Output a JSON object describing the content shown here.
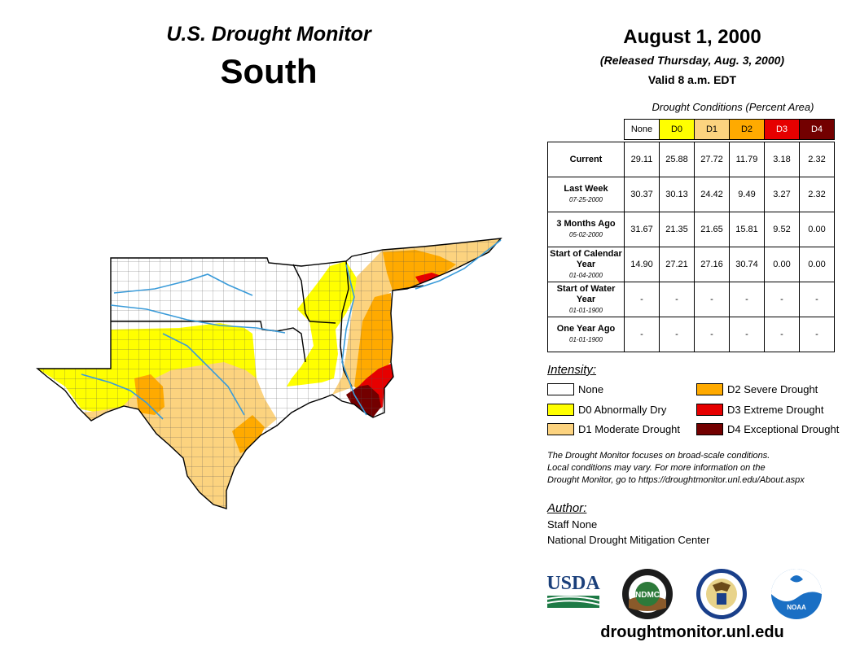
{
  "header": {
    "product": "U.S. Drought Monitor",
    "region": "South",
    "date": "August 1, 2000",
    "released": "(Released Thursday, Aug. 3, 2000)",
    "valid": "Valid 8 a.m. EDT"
  },
  "stats": {
    "caption": "Drought Conditions (Percent Area)",
    "columns": [
      "None",
      "D0",
      "D1",
      "D2",
      "D3",
      "D4"
    ],
    "column_colors": [
      "#ffffff",
      "#ffff00",
      "#fcd37f",
      "#ffaa00",
      "#e60000",
      "#730000"
    ],
    "rows": [
      {
        "label": "Current",
        "date": "",
        "values": [
          "29.11",
          "25.88",
          "27.72",
          "11.79",
          "3.18",
          "2.32"
        ]
      },
      {
        "label": "Last Week",
        "date": "07-25-2000",
        "values": [
          "30.37",
          "30.13",
          "24.42",
          "9.49",
          "3.27",
          "2.32"
        ]
      },
      {
        "label": "3 Months Ago",
        "date": "05-02-2000",
        "values": [
          "31.67",
          "21.35",
          "21.65",
          "15.81",
          "9.52",
          "0.00"
        ]
      },
      {
        "label": "Start of Calendar Year",
        "date": "01-04-2000",
        "values": [
          "14.90",
          "27.21",
          "27.16",
          "30.74",
          "0.00",
          "0.00"
        ]
      },
      {
        "label": "Start of Water Year",
        "date": "01-01-1900",
        "values": [
          "-",
          "-",
          "-",
          "-",
          "-",
          "-"
        ]
      },
      {
        "label": "One Year Ago",
        "date": "01-01-1900",
        "values": [
          "-",
          "-",
          "-",
          "-",
          "-",
          "-"
        ]
      }
    ]
  },
  "legend": {
    "title": "Intensity:",
    "items": [
      {
        "label": "None",
        "color": "#ffffff"
      },
      {
        "label": "D0 Abnormally Dry",
        "color": "#ffff00"
      },
      {
        "label": "D1 Moderate Drought",
        "color": "#fcd37f"
      },
      {
        "label": "D2 Severe Drought",
        "color": "#ffaa00"
      },
      {
        "label": "D3 Extreme Drought",
        "color": "#e60000"
      },
      {
        "label": "D4 Exceptional Drought",
        "color": "#730000"
      }
    ]
  },
  "note": {
    "line1": "The Drought Monitor focuses on broad-scale conditions.",
    "line2": "Local conditions may vary. For more information on the",
    "line3": "Drought Monitor, go to https://droughtmonitor.unl.edu/About.aspx"
  },
  "author": {
    "title": "Author:",
    "name": "Staff None",
    "org": "National Drought Mitigation Center"
  },
  "logos": {
    "usda": "USDA",
    "ndmc": "NDMC",
    "noaa": "NOAA"
  },
  "footer": {
    "url": "droughtmonitor.unl.edu"
  },
  "map": {
    "region_colors": {
      "none": "#ffffff",
      "d0": "#ffff00",
      "d1": "#fcd37f",
      "d2": "#ffaa00",
      "d3": "#e60000",
      "d4": "#730000",
      "river": "#3a9bd9",
      "county_line": "#555555"
    }
  }
}
